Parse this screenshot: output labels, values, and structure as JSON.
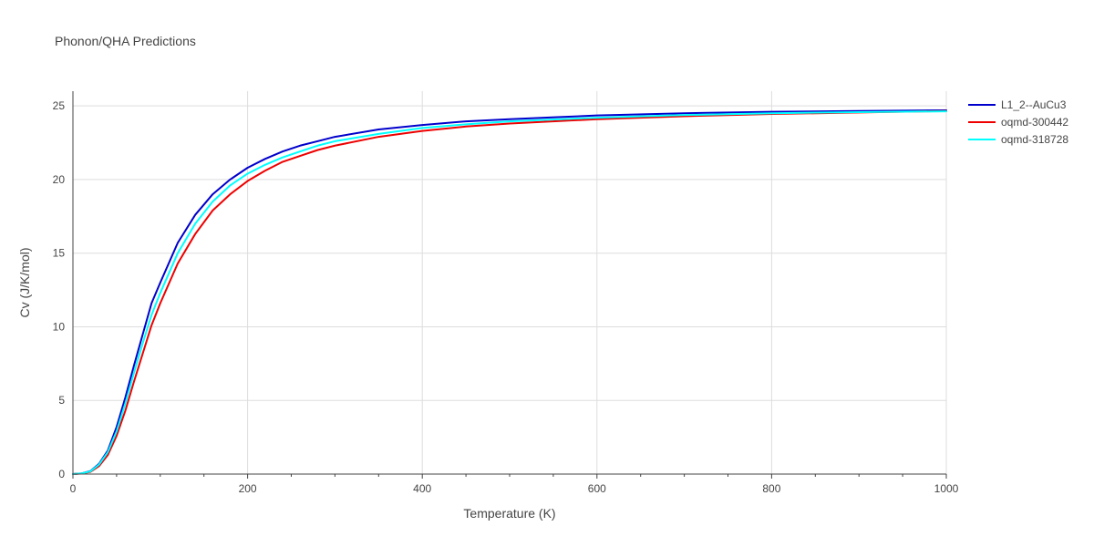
{
  "chart_data": {
    "type": "line",
    "title": "Phonon/QHA Predictions",
    "xlabel": "Temperature (K)",
    "ylabel": "Cv (J/K/mol)",
    "xlim": [
      0,
      1000
    ],
    "ylim": [
      0,
      26
    ],
    "xticks": [
      0,
      200,
      400,
      600,
      800,
      1000
    ],
    "yticks": [
      0,
      5,
      10,
      15,
      20,
      25
    ],
    "grid": true,
    "legend_position": "top-right",
    "series": [
      {
        "name": "L1_2--AuCu3",
        "color": "#0000cc",
        "x": [
          0,
          10,
          20,
          30,
          40,
          50,
          60,
          70,
          80,
          90,
          100,
          120,
          140,
          160,
          180,
          200,
          220,
          240,
          260,
          280,
          300,
          350,
          400,
          450,
          500,
          600,
          700,
          800,
          900,
          1000
        ],
        "y": [
          0,
          0.05,
          0.2,
          0.7,
          1.6,
          3.2,
          5.2,
          7.4,
          9.5,
          11.6,
          13.0,
          15.7,
          17.6,
          19.0,
          20.0,
          20.8,
          21.4,
          21.9,
          22.3,
          22.6,
          22.9,
          23.4,
          23.7,
          23.95,
          24.1,
          24.35,
          24.5,
          24.6,
          24.65,
          24.7
        ]
      },
      {
        "name": "oqmd-300442",
        "color": "#ee0000",
        "x": [
          0,
          10,
          20,
          30,
          40,
          50,
          60,
          70,
          80,
          90,
          100,
          120,
          140,
          160,
          180,
          200,
          220,
          240,
          260,
          280,
          300,
          350,
          400,
          450,
          500,
          600,
          700,
          800,
          900,
          1000
        ],
        "y": [
          0,
          0.04,
          0.15,
          0.55,
          1.3,
          2.6,
          4.3,
          6.3,
          8.2,
          10.1,
          11.6,
          14.3,
          16.3,
          17.9,
          19.0,
          19.9,
          20.6,
          21.2,
          21.6,
          22.0,
          22.3,
          22.9,
          23.3,
          23.6,
          23.8,
          24.1,
          24.3,
          24.45,
          24.55,
          24.65
        ]
      },
      {
        "name": "oqmd-318728",
        "color": "#00ffff",
        "x": [
          0,
          10,
          20,
          30,
          40,
          50,
          60,
          70,
          80,
          90,
          100,
          120,
          140,
          160,
          180,
          200,
          220,
          240,
          260,
          280,
          300,
          350,
          400,
          450,
          500,
          600,
          700,
          800,
          900,
          1000
        ],
        "y": [
          0,
          0.05,
          0.18,
          0.65,
          1.5,
          2.9,
          4.8,
          6.9,
          8.9,
          10.8,
          12.3,
          15.0,
          17.0,
          18.5,
          19.6,
          20.4,
          21.0,
          21.5,
          21.9,
          22.3,
          22.6,
          23.1,
          23.5,
          23.75,
          23.95,
          24.2,
          24.38,
          24.5,
          24.58,
          24.63
        ]
      }
    ]
  }
}
